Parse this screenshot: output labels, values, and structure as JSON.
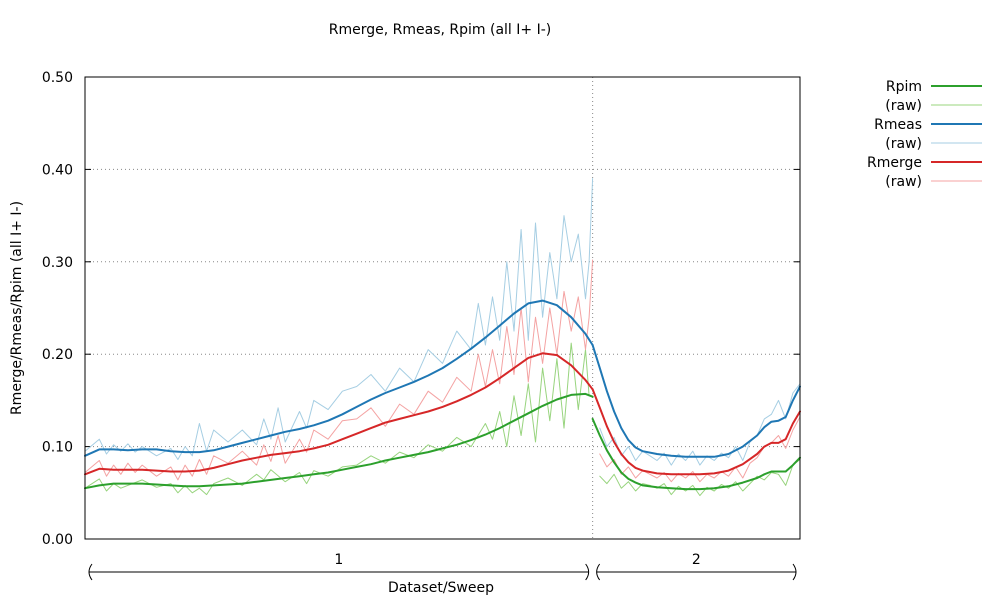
{
  "chart_data": {
    "type": "line",
    "title": "Rmerge, Rmeas, Rpim (all I+  I-)",
    "xlabel": "Dataset/Sweep",
    "ylabel": "Rmerge/Rmeas/Rpim (all I+  I-)",
    "ylim": [
      0,
      0.5
    ],
    "yticks": [
      "0.00",
      "0.10",
      "0.20",
      "0.30",
      "0.40",
      "0.50"
    ],
    "grid": true,
    "legend_position": "right, outside plot",
    "x_domain": [
      0,
      1
    ],
    "boundary": 0.71,
    "datasets": [
      {
        "label": "1",
        "range": [
          0,
          0.71
        ]
      },
      {
        "label": "2",
        "range": [
          0.71,
          1.0
        ]
      }
    ],
    "series": [
      {
        "name": "Rpim",
        "color": "#2ca02c",
        "width": 2,
        "opacity": 1,
        "segments": [
          {
            "x": [
              0,
              0.02,
              0.04,
              0.06,
              0.08,
              0.1,
              0.12,
              0.14,
              0.16,
              0.18,
              0.2,
              0.22,
              0.24,
              0.26,
              0.28,
              0.3,
              0.32,
              0.34,
              0.36,
              0.38,
              0.4,
              0.42,
              0.44,
              0.46,
              0.48,
              0.5,
              0.52,
              0.54,
              0.56,
              0.58,
              0.6,
              0.62,
              0.64,
              0.66,
              0.68,
              0.7,
              0.71
            ],
            "y": [
              0.055,
              0.058,
              0.06,
              0.06,
              0.06,
              0.059,
              0.058,
              0.057,
              0.057,
              0.058,
              0.059,
              0.06,
              0.062,
              0.064,
              0.066,
              0.068,
              0.07,
              0.072,
              0.075,
              0.078,
              0.081,
              0.085,
              0.088,
              0.091,
              0.094,
              0.098,
              0.102,
              0.107,
              0.113,
              0.12,
              0.128,
              0.136,
              0.144,
              0.151,
              0.156,
              0.157,
              0.154
            ]
          },
          {
            "x": [
              0.71,
              0.72,
              0.73,
              0.74,
              0.75,
              0.76,
              0.77,
              0.78,
              0.8,
              0.82,
              0.84,
              0.86,
              0.88,
              0.9,
              0.92,
              0.94,
              0.95,
              0.96,
              0.97,
              0.98,
              0.99,
              1.0
            ],
            "y": [
              0.13,
              0.112,
              0.096,
              0.083,
              0.072,
              0.065,
              0.061,
              0.058,
              0.056,
              0.055,
              0.054,
              0.054,
              0.055,
              0.057,
              0.061,
              0.066,
              0.07,
              0.073,
              0.073,
              0.073,
              0.08,
              0.088
            ]
          }
        ]
      },
      {
        "name": "(raw)",
        "color": "#98d47e",
        "width": 1,
        "opacity": 1,
        "segments": [
          {
            "x": [
              0,
              0.02,
              0.03,
              0.04,
              0.05,
              0.06,
              0.08,
              0.1,
              0.12,
              0.13,
              0.14,
              0.15,
              0.16,
              0.17,
              0.18,
              0.2,
              0.22,
              0.24,
              0.25,
              0.26,
              0.28,
              0.3,
              0.31,
              0.32,
              0.34,
              0.36,
              0.38,
              0.4,
              0.42,
              0.44,
              0.46,
              0.48,
              0.5,
              0.52,
              0.54,
              0.56,
              0.57,
              0.58,
              0.59,
              0.6,
              0.61,
              0.62,
              0.63,
              0.64,
              0.65,
              0.66,
              0.67,
              0.68,
              0.69,
              0.7,
              0.705
            ],
            "y": [
              0.055,
              0.065,
              0.052,
              0.06,
              0.055,
              0.058,
              0.064,
              0.056,
              0.06,
              0.05,
              0.058,
              0.05,
              0.055,
              0.048,
              0.06,
              0.066,
              0.058,
              0.07,
              0.064,
              0.075,
              0.062,
              0.072,
              0.06,
              0.074,
              0.068,
              0.078,
              0.08,
              0.09,
              0.082,
              0.094,
              0.088,
              0.102,
              0.095,
              0.11,
              0.1,
              0.125,
              0.108,
              0.138,
              0.1,
              0.155,
              0.112,
              0.168,
              0.105,
              0.185,
              0.128,
              0.195,
              0.12,
              0.212,
              0.14,
              0.205,
              0.155
            ]
          },
          {
            "x": [
              0.72,
              0.73,
              0.74,
              0.75,
              0.76,
              0.77,
              0.78,
              0.79,
              0.8,
              0.81,
              0.82,
              0.83,
              0.84,
              0.85,
              0.86,
              0.87,
              0.88,
              0.89,
              0.9,
              0.91,
              0.92,
              0.93,
              0.94,
              0.95,
              0.96,
              0.97,
              0.98,
              0.99,
              1.0
            ],
            "y": [
              0.068,
              0.06,
              0.07,
              0.055,
              0.062,
              0.052,
              0.06,
              0.058,
              0.055,
              0.06,
              0.048,
              0.057,
              0.052,
              0.058,
              0.047,
              0.056,
              0.052,
              0.059,
              0.055,
              0.062,
              0.052,
              0.06,
              0.068,
              0.064,
              0.072,
              0.07,
              0.058,
              0.08,
              0.086
            ]
          }
        ]
      },
      {
        "name": "Rmeas",
        "color": "#1f77b4",
        "width": 2,
        "opacity": 1,
        "segments": [
          {
            "x": [
              0,
              0.02,
              0.04,
              0.06,
              0.08,
              0.1,
              0.12,
              0.14,
              0.16,
              0.18,
              0.2,
              0.22,
              0.24,
              0.26,
              0.28,
              0.3,
              0.32,
              0.34,
              0.36,
              0.38,
              0.4,
              0.42,
              0.44,
              0.46,
              0.48,
              0.5,
              0.52,
              0.54,
              0.56,
              0.58,
              0.6,
              0.62,
              0.64,
              0.66,
              0.68,
              0.7,
              0.71
            ],
            "y": [
              0.09,
              0.097,
              0.097,
              0.096,
              0.097,
              0.097,
              0.095,
              0.094,
              0.094,
              0.096,
              0.1,
              0.104,
              0.108,
              0.112,
              0.116,
              0.119,
              0.123,
              0.128,
              0.135,
              0.143,
              0.151,
              0.158,
              0.164,
              0.17,
              0.177,
              0.185,
              0.195,
              0.206,
              0.218,
              0.231,
              0.244,
              0.255,
              0.258,
              0.253,
              0.24,
              0.222,
              0.21
            ]
          },
          {
            "x": [
              0.71,
              0.72,
              0.73,
              0.74,
              0.75,
              0.76,
              0.77,
              0.78,
              0.8,
              0.82,
              0.84,
              0.86,
              0.88,
              0.9,
              0.92,
              0.94,
              0.95,
              0.96,
              0.97,
              0.98,
              0.99,
              1.0
            ],
            "y": [
              0.21,
              0.185,
              0.16,
              0.138,
              0.12,
              0.107,
              0.099,
              0.095,
              0.092,
              0.09,
              0.089,
              0.089,
              0.089,
              0.092,
              0.1,
              0.112,
              0.121,
              0.127,
              0.128,
              0.132,
              0.15,
              0.165
            ]
          }
        ]
      },
      {
        "name": "(raw)",
        "color": "#a6cee3",
        "width": 1,
        "opacity": 1,
        "segments": [
          {
            "x": [
              0,
              0.02,
              0.03,
              0.04,
              0.05,
              0.06,
              0.07,
              0.08,
              0.1,
              0.12,
              0.13,
              0.14,
              0.15,
              0.16,
              0.17,
              0.18,
              0.2,
              0.22,
              0.24,
              0.25,
              0.26,
              0.27,
              0.28,
              0.3,
              0.31,
              0.32,
              0.34,
              0.36,
              0.38,
              0.4,
              0.42,
              0.44,
              0.46,
              0.48,
              0.5,
              0.52,
              0.54,
              0.55,
              0.56,
              0.57,
              0.58,
              0.59,
              0.6,
              0.61,
              0.62,
              0.63,
              0.64,
              0.65,
              0.66,
              0.67,
              0.68,
              0.69,
              0.7,
              0.705,
              0.71
            ],
            "y": [
              0.095,
              0.108,
              0.092,
              0.102,
              0.095,
              0.103,
              0.094,
              0.1,
              0.09,
              0.098,
              0.086,
              0.1,
              0.09,
              0.125,
              0.095,
              0.118,
              0.105,
              0.118,
              0.102,
              0.13,
              0.108,
              0.142,
              0.105,
              0.138,
              0.12,
              0.15,
              0.14,
              0.16,
              0.165,
              0.178,
              0.16,
              0.185,
              0.17,
              0.205,
              0.19,
              0.225,
              0.205,
              0.255,
              0.21,
              0.262,
              0.215,
              0.3,
              0.225,
              0.335,
              0.215,
              0.342,
              0.24,
              0.31,
              0.26,
              0.35,
              0.3,
              0.33,
              0.26,
              0.3,
              0.39
            ]
          },
          {
            "x": [
              0.72,
              0.73,
              0.74,
              0.75,
              0.76,
              0.77,
              0.78,
              0.79,
              0.8,
              0.81,
              0.82,
              0.83,
              0.84,
              0.85,
              0.86,
              0.87,
              0.88,
              0.89,
              0.9,
              0.91,
              0.92,
              0.93,
              0.94,
              0.95,
              0.96,
              0.97,
              0.98,
              0.99,
              1.0
            ],
            "y": [
              0.12,
              0.1,
              0.11,
              0.09,
              0.1,
              0.085,
              0.095,
              0.09,
              0.085,
              0.093,
              0.08,
              0.092,
              0.085,
              0.095,
              0.08,
              0.09,
              0.085,
              0.093,
              0.088,
              0.1,
              0.085,
              0.105,
              0.112,
              0.13,
              0.135,
              0.15,
              0.13,
              0.158,
              0.168
            ]
          }
        ]
      },
      {
        "name": "Rmerge",
        "color": "#d62728",
        "width": 2,
        "opacity": 1,
        "segments": [
          {
            "x": [
              0,
              0.02,
              0.04,
              0.06,
              0.08,
              0.1,
              0.12,
              0.14,
              0.16,
              0.18,
              0.2,
              0.22,
              0.24,
              0.26,
              0.28,
              0.3,
              0.32,
              0.34,
              0.36,
              0.38,
              0.4,
              0.42,
              0.44,
              0.46,
              0.48,
              0.5,
              0.52,
              0.54,
              0.56,
              0.58,
              0.6,
              0.62,
              0.64,
              0.66,
              0.68,
              0.7,
              0.71
            ],
            "y": [
              0.07,
              0.076,
              0.075,
              0.075,
              0.075,
              0.074,
              0.073,
              0.073,
              0.074,
              0.077,
              0.081,
              0.085,
              0.088,
              0.091,
              0.093,
              0.095,
              0.098,
              0.102,
              0.108,
              0.114,
              0.12,
              0.126,
              0.13,
              0.134,
              0.138,
              0.143,
              0.149,
              0.156,
              0.164,
              0.174,
              0.185,
              0.196,
              0.201,
              0.199,
              0.188,
              0.172,
              0.162
            ]
          },
          {
            "x": [
              0.71,
              0.72,
              0.73,
              0.74,
              0.75,
              0.76,
              0.77,
              0.78,
              0.8,
              0.82,
              0.84,
              0.86,
              0.88,
              0.9,
              0.92,
              0.94,
              0.95,
              0.96,
              0.97,
              0.98,
              0.99,
              1.0
            ],
            "y": [
              0.162,
              0.142,
              0.122,
              0.105,
              0.092,
              0.083,
              0.077,
              0.074,
              0.071,
              0.07,
              0.07,
              0.07,
              0.071,
              0.074,
              0.081,
              0.092,
              0.1,
              0.104,
              0.104,
              0.108,
              0.125,
              0.138
            ]
          }
        ]
      },
      {
        "name": "(raw)",
        "color": "#f4a3a3",
        "width": 1,
        "opacity": 1,
        "segments": [
          {
            "x": [
              0,
              0.02,
              0.03,
              0.04,
              0.05,
              0.06,
              0.07,
              0.08,
              0.1,
              0.12,
              0.13,
              0.14,
              0.15,
              0.16,
              0.17,
              0.18,
              0.2,
              0.22,
              0.24,
              0.25,
              0.26,
              0.27,
              0.28,
              0.3,
              0.31,
              0.32,
              0.34,
              0.36,
              0.38,
              0.4,
              0.42,
              0.44,
              0.46,
              0.48,
              0.5,
              0.52,
              0.54,
              0.55,
              0.56,
              0.57,
              0.58,
              0.59,
              0.6,
              0.61,
              0.62,
              0.63,
              0.64,
              0.65,
              0.66,
              0.67,
              0.68,
              0.69,
              0.7,
              0.705,
              0.71
            ],
            "y": [
              0.072,
              0.085,
              0.068,
              0.08,
              0.07,
              0.082,
              0.072,
              0.08,
              0.068,
              0.078,
              0.064,
              0.08,
              0.068,
              0.086,
              0.07,
              0.09,
              0.082,
              0.095,
              0.08,
              0.102,
              0.084,
              0.112,
              0.082,
              0.108,
              0.094,
              0.118,
              0.108,
              0.128,
              0.13,
              0.142,
              0.122,
              0.146,
              0.135,
              0.16,
              0.148,
              0.175,
              0.16,
              0.2,
              0.165,
              0.205,
              0.168,
              0.23,
              0.178,
              0.25,
              0.17,
              0.24,
              0.19,
              0.25,
              0.2,
              0.268,
              0.225,
              0.262,
              0.205,
              0.24,
              0.302
            ]
          },
          {
            "x": [
              0.72,
              0.73,
              0.74,
              0.75,
              0.76,
              0.77,
              0.78,
              0.79,
              0.8,
              0.81,
              0.82,
              0.83,
              0.84,
              0.85,
              0.86,
              0.87,
              0.88,
              0.89,
              0.9,
              0.91,
              0.92,
              0.93,
              0.94,
              0.95,
              0.96,
              0.97,
              0.98,
              0.99,
              1.0
            ],
            "y": [
              0.092,
              0.078,
              0.086,
              0.07,
              0.078,
              0.066,
              0.074,
              0.07,
              0.066,
              0.072,
              0.062,
              0.071,
              0.066,
              0.073,
              0.062,
              0.07,
              0.066,
              0.073,
              0.068,
              0.078,
              0.066,
              0.082,
              0.088,
              0.1,
              0.104,
              0.112,
              0.098,
              0.118,
              0.132
            ]
          }
        ]
      }
    ]
  }
}
